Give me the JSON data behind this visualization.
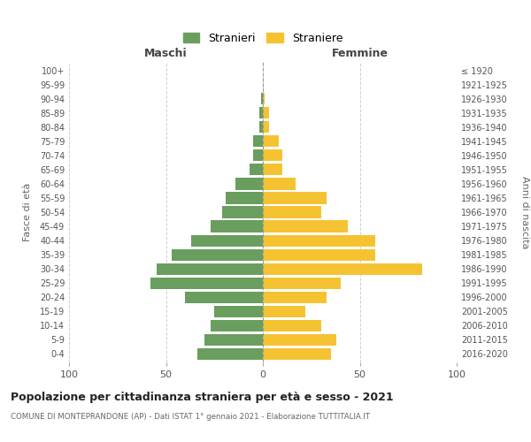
{
  "age_groups": [
    "0-4",
    "5-9",
    "10-14",
    "15-19",
    "20-24",
    "25-29",
    "30-34",
    "35-39",
    "40-44",
    "45-49",
    "50-54",
    "55-59",
    "60-64",
    "65-69",
    "70-74",
    "75-79",
    "80-84",
    "85-89",
    "90-94",
    "95-99",
    "100+"
  ],
  "birth_years": [
    "2016-2020",
    "2011-2015",
    "2006-2010",
    "2001-2005",
    "1996-2000",
    "1991-1995",
    "1986-1990",
    "1981-1985",
    "1976-1980",
    "1971-1975",
    "1966-1970",
    "1961-1965",
    "1956-1960",
    "1951-1955",
    "1946-1950",
    "1941-1945",
    "1936-1940",
    "1931-1935",
    "1926-1930",
    "1921-1925",
    "≤ 1920"
  ],
  "males": [
    34,
    30,
    27,
    25,
    40,
    58,
    55,
    47,
    37,
    27,
    21,
    19,
    14,
    7,
    5,
    5,
    2,
    2,
    1,
    0,
    0
  ],
  "females": [
    35,
    38,
    30,
    22,
    33,
    40,
    82,
    58,
    58,
    44,
    30,
    33,
    17,
    10,
    10,
    8,
    3,
    3,
    1,
    0,
    0
  ],
  "male_color": "#6a9e5e",
  "female_color": "#f5c332",
  "background_color": "#ffffff",
  "grid_color": "#d0d0d0",
  "title": "Popolazione per cittadinanza straniera per età e sesso - 2021",
  "subtitle": "COMUNE DI MONTEPRANDONE (AP) - Dati ISTAT 1° gennaio 2021 - Elaborazione TUTTITALIA.IT",
  "xlabel_left": "Maschi",
  "xlabel_right": "Femmine",
  "ylabel_left": "Fasce di età",
  "ylabel_right": "Anni di nascita",
  "legend_male": "Stranieri",
  "legend_female": "Straniere",
  "xlim": 100
}
